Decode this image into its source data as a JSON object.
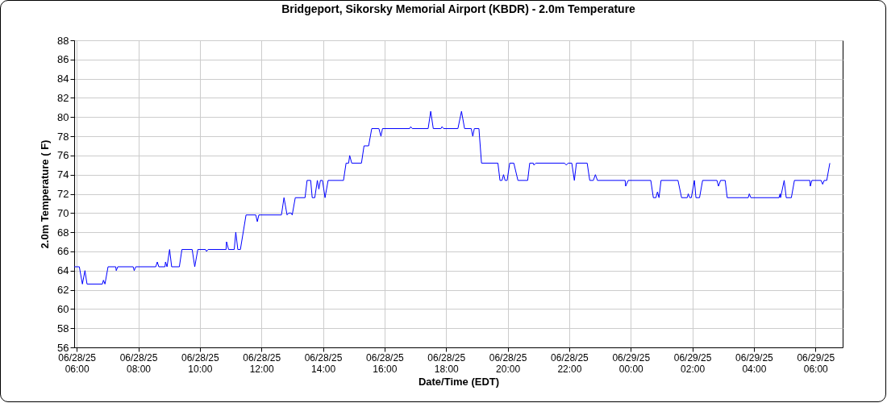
{
  "chart_data": {
    "type": "line",
    "title": "Bridgeport, Sikorsky Memorial Airport (KBDR) - 2.0m Temperature",
    "xlabel": "Date/Time (EDT)",
    "ylabel": "2.0m Temperature ( F)",
    "x": [
      "--06-28T05:55",
      "--06-28T06:05",
      "--06-28T06:11",
      "--06-28T06:16",
      "--06-28T06:20",
      "--06-28T06:50",
      "--06-28T06:52",
      "--06-28T06:55",
      "--06-28T07:01",
      "--06-28T07:16",
      "--06-28T07:17",
      "--06-28T07:20",
      "--06-28T07:50",
      "--06-28T07:52",
      "--06-28T07:55",
      "--06-28T08:34",
      "--06-28T08:37",
      "--06-28T08:40",
      "--06-28T08:52",
      "--06-28T08:53",
      "--06-28T08:56",
      "--06-28T09:01",
      "--06-28T09:05",
      "--06-28T09:20",
      "--06-28T09:25",
      "--06-28T09:45",
      "--06-28T09:50",
      "--06-28T09:56",
      "--06-28T10:11",
      "--06-28T10:13",
      "--06-28T10:16",
      "--06-28T10:51",
      "--06-28T10:52",
      "--06-28T10:56",
      "--06-28T11:07",
      "--06-28T11:10",
      "--06-28T11:14",
      "--06-28T11:19",
      "--06-28T11:30",
      "--06-28T11:49",
      "--06-28T11:52",
      "--06-28T11:55",
      "--06-28T12:39",
      "--06-28T12:44",
      "--06-28T12:50",
      "--06-28T12:53",
      "--06-28T12:58",
      "--06-28T13:00",
      "--06-28T13:06",
      "--06-28T13:25",
      "--06-28T13:29",
      "--06-28T13:36",
      "--06-28T13:39",
      "--06-28T13:44",
      "--06-28T13:49",
      "--06-28T13:52",
      "--06-28T13:55",
      "--06-28T13:59",
      "--06-28T14:04",
      "--06-28T14:10",
      "--06-28T14:40",
      "--06-28T14:45",
      "--06-28T14:50",
      "--06-28T14:52",
      "--06-28T14:56",
      "--06-28T15:15",
      "--06-28T15:20",
      "--06-28T15:29",
      "--06-28T15:35",
      "--06-28T15:49",
      "--06-28T15:53",
      "--06-28T15:56",
      "--06-28T16:49",
      "--06-28T16:51",
      "--06-28T16:54",
      "--06-28T17:25",
      "--06-28T17:30",
      "--06-28T17:35",
      "--06-28T17:50",
      "--06-28T17:52",
      "--06-28T17:55",
      "--06-28T18:23",
      "--06-28T18:30",
      "--06-28T18:36",
      "--06-28T18:49",
      "--06-28T18:52",
      "--06-28T18:55",
      "--06-28T19:04",
      "--06-28T19:09",
      "--06-28T19:41",
      "--06-28T19:45",
      "--06-28T19:49",
      "--06-28T19:52",
      "--06-28T19:55",
      "--06-28T19:59",
      "--06-28T20:04",
      "--06-28T20:12",
      "--06-28T20:20",
      "--06-28T20:39",
      "--06-28T20:43",
      "--06-28T20:50",
      "--06-28T20:51",
      "--06-28T20:55",
      "--06-28T21:51",
      "--06-28T21:54",
      "--06-28T21:58",
      "--06-28T22:05",
      "--06-28T22:10",
      "--06-28T22:14",
      "--06-28T22:35",
      "--06-28T22:40",
      "--06-28T22:47",
      "--06-28T22:51",
      "--06-28T22:55",
      "--06-28T23:49",
      "--06-28T23:50",
      "--06-28T23:55",
      "--06-29T00:39",
      "--06-29T00:44",
      "--06-29T00:49",
      "--06-29T00:52",
      "--06-29T00:55",
      "--06-29T00:59",
      "--06-29T01:32",
      "--06-29T01:39",
      "--06-29T01:50",
      "--06-29T01:52",
      "--06-29T01:55",
      "--06-29T01:58",
      "--06-29T02:04",
      "--06-29T02:07",
      "--06-29T02:14",
      "--06-29T02:20",
      "--06-29T02:48",
      "--06-29T02:51",
      "--06-29T02:55",
      "--06-29T03:04",
      "--06-29T03:08",
      "--06-29T03:49",
      "--06-29T03:51",
      "--06-29T03:54",
      "--06-29T04:49",
      "--06-29T04:51",
      "--06-29T04:52",
      "--06-29T04:59",
      "--06-29T05:03",
      "--06-29T05:13",
      "--06-29T05:19",
      "--06-29T05:49",
      "--06-29T05:50",
      "--06-29T05:53",
      "--06-29T06:11",
      "--06-29T06:14",
      "--06-29T06:17",
      "--06-29T06:22",
      "--06-29T06:28"
    ],
    "series": [
      {
        "color": "#0000ff",
        "values": [
          64.4,
          64.4,
          62.6,
          64.0,
          62.6,
          62.6,
          63.0,
          62.6,
          64.4,
          64.4,
          64.0,
          64.4,
          64.4,
          64.0,
          64.4,
          64.4,
          64.9,
          64.4,
          64.4,
          64.9,
          64.4,
          66.2,
          64.4,
          64.4,
          66.2,
          66.2,
          64.4,
          66.2,
          66.2,
          66.0,
          66.2,
          66.2,
          67.0,
          66.2,
          66.2,
          68.0,
          66.2,
          66.2,
          69.8,
          69.8,
          69.1,
          69.8,
          69.8,
          71.6,
          69.8,
          70.0,
          70.0,
          69.8,
          71.6,
          71.6,
          73.4,
          73.4,
          71.6,
          71.6,
          73.4,
          72.5,
          73.4,
          73.4,
          71.6,
          73.4,
          73.4,
          75.2,
          75.2,
          76.0,
          75.2,
          75.2,
          77.0,
          77.0,
          78.8,
          78.8,
          78.0,
          78.8,
          78.8,
          79.0,
          78.8,
          78.8,
          80.6,
          78.8,
          78.8,
          79.0,
          78.8,
          78.8,
          80.6,
          78.8,
          78.8,
          78.0,
          78.8,
          78.8,
          75.2,
          75.2,
          73.4,
          73.4,
          74.0,
          73.4,
          73.4,
          75.2,
          75.2,
          73.4,
          73.4,
          75.2,
          75.2,
          75.0,
          75.2,
          75.2,
          75.0,
          75.2,
          75.2,
          73.4,
          75.2,
          75.2,
          73.4,
          73.4,
          74.0,
          73.4,
          73.4,
          72.8,
          73.4,
          73.4,
          71.6,
          71.6,
          72.2,
          71.6,
          73.4,
          73.4,
          71.6,
          71.6,
          72.0,
          71.6,
          71.6,
          73.4,
          71.6,
          71.6,
          73.4,
          73.4,
          72.8,
          73.4,
          73.4,
          71.6,
          71.6,
          72.0,
          71.6,
          71.6,
          72.0,
          71.6,
          73.4,
          71.6,
          71.6,
          73.4,
          73.4,
          72.8,
          73.4,
          73.4,
          73.0,
          73.4,
          73.4,
          75.2
        ]
      }
    ],
    "xlim": [
      "--06-28T05:55",
      "--06-29T06:53"
    ],
    "xticks": [
      {
        "value": "--06-28T06:00",
        "label": "06/28/25\n06:00"
      },
      {
        "value": "--06-28T08:00",
        "label": "06/28/25\n08:00"
      },
      {
        "value": "--06-28T10:00",
        "label": "06/28/25\n10:00"
      },
      {
        "value": "--06-28T12:00",
        "label": "06/28/25\n12:00"
      },
      {
        "value": "--06-28T14:00",
        "label": "06/28/25\n14:00"
      },
      {
        "value": "--06-28T16:00",
        "label": "06/28/25\n16:00"
      },
      {
        "value": "--06-28T18:00",
        "label": "06/28/25\n18:00"
      },
      {
        "value": "--06-28T20:00",
        "label": "06/28/25\n20:00"
      },
      {
        "value": "--06-28T22:00",
        "label": "06/28/25\n22:00"
      },
      {
        "value": "--06-29T00:00",
        "label": "06/29/25\n00:00"
      },
      {
        "value": "--06-29T02:00",
        "label": "06/29/25\n02:00"
      },
      {
        "value": "--06-29T04:00",
        "label": "06/29/25\n04:00"
      },
      {
        "value": "--06-29T06:00",
        "label": "06/29/25\n06:00"
      }
    ],
    "ylim": [
      56,
      88
    ],
    "yticks": [
      56,
      58,
      60,
      62,
      64,
      66,
      68,
      70,
      72,
      74,
      76,
      78,
      80,
      82,
      84,
      86,
      88
    ],
    "grid": true,
    "marker": "none",
    "line_style": "solid"
  }
}
